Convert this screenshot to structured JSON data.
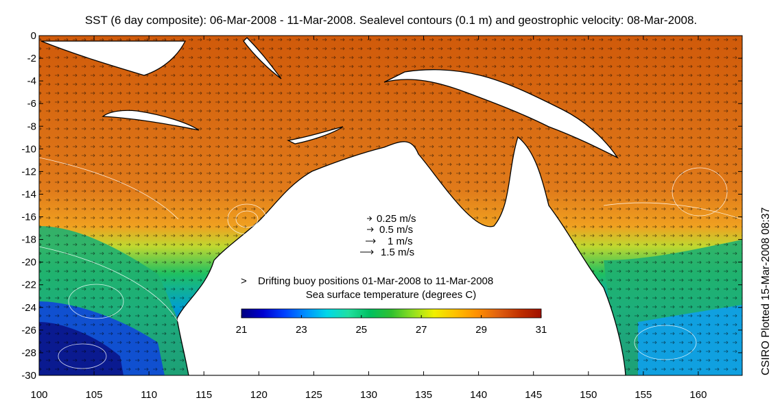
{
  "title": "SST (6 day composite): 06-Mar-2008 - 11-Mar-2008. Sealevel contours (0.1 m) and geostrophic velocity: 08-Mar-2008.",
  "credit": "CSIRO Plotted 15-Mar-2008 08:37",
  "map": {
    "lon_range": [
      100,
      164
    ],
    "lat_range": [
      -30,
      0
    ],
    "x_ticks": [
      "100",
      "105",
      "110",
      "115",
      "120",
      "125",
      "130",
      "135",
      "140",
      "145",
      "150",
      "155",
      "160"
    ],
    "y_ticks": [
      "0",
      "-2",
      "-4",
      "-6",
      "-8",
      "-10",
      "-12",
      "-14",
      "-16",
      "-18",
      "-20",
      "-22",
      "-24",
      "-26",
      "-28",
      "-30"
    ]
  },
  "velocity_legend": [
    {
      "label": "0.25 m/s",
      "speed": 0.25
    },
    {
      "label": "0.5 m/s",
      "speed": 0.5
    },
    {
      "label": "1 m/s",
      "speed": 1
    },
    {
      "label": "1.5 m/s",
      "speed": 1.5
    }
  ],
  "buoy_legend": {
    "marker": ">",
    "label": "Drifting buoy positions 01-Mar-2008 to 11-Mar-2008",
    "color": "#ff33ff"
  },
  "colorbar": {
    "title": "Sea surface temperature (degrees C)",
    "ticks": [
      "21",
      "23",
      "25",
      "27",
      "29",
      "31"
    ],
    "range": [
      21,
      31
    ],
    "colors": [
      "#00007f",
      "#0000d0",
      "#0040ff",
      "#0090ff",
      "#00d8e8",
      "#20e0a0",
      "#00c060",
      "#30c030",
      "#90e020",
      "#f0f000",
      "#ffc000",
      "#ff9000",
      "#e06010",
      "#c03000",
      "#a01000"
    ]
  },
  "colors": {
    "land": "#ffffff",
    "coast": "#000000",
    "warm_water": "#d86a10",
    "contour": "#ffffff"
  }
}
